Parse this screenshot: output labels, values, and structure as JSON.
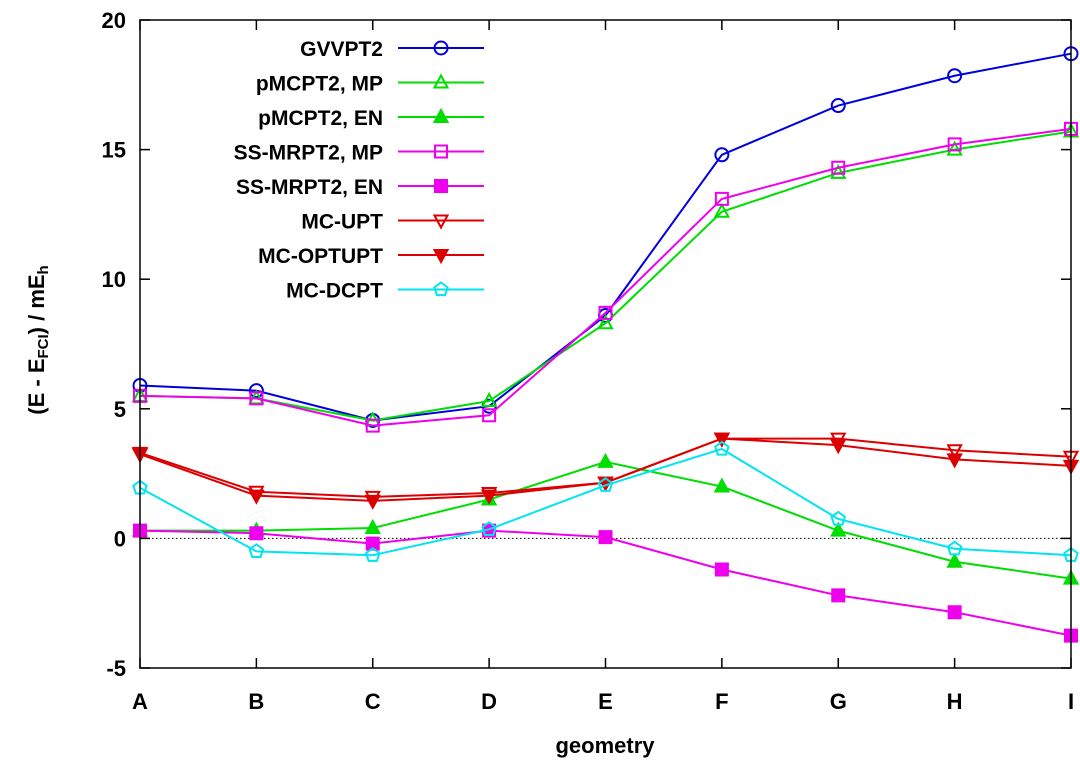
{
  "chart_data": {
    "type": "line",
    "xlabel": "geometry",
    "ylabel": {
      "main": "(E - E",
      "sub1": "FCI",
      "mid": ") / mE",
      "sub2": "h"
    },
    "categories": [
      "A",
      "B",
      "C",
      "D",
      "E",
      "F",
      "G",
      "H",
      "I"
    ],
    "ylim": [
      -5,
      20
    ],
    "yticks": [
      -5,
      0,
      5,
      10,
      15,
      20
    ],
    "ytick_labels": [
      "-5",
      "0",
      "5",
      "10",
      "15",
      "20"
    ],
    "zero_line": true,
    "grid": false,
    "legend_position": "top-left",
    "series": [
      {
        "name": "GVVPT2",
        "color": "#0000dd",
        "marker": "circle-open",
        "values": [
          5.9,
          5.7,
          4.55,
          5.1,
          8.6,
          14.8,
          16.7,
          17.85,
          18.7
        ]
      },
      {
        "name": "pMCPT2, MP",
        "color": "#00dd00",
        "marker": "triangle-up-open",
        "values": [
          5.5,
          5.4,
          4.55,
          5.3,
          8.3,
          12.6,
          14.1,
          15.0,
          15.7
        ]
      },
      {
        "name": "pMCPT2, EN",
        "color": "#00dd00",
        "marker": "triangle-up-filled",
        "values": [
          0.3,
          0.3,
          0.4,
          1.5,
          2.95,
          2.0,
          0.3,
          -0.9,
          -1.55
        ]
      },
      {
        "name": "SS-MRPT2, MP",
        "color": "#ee00ee",
        "marker": "square-open",
        "values": [
          5.5,
          5.4,
          4.35,
          4.75,
          8.7,
          13.1,
          14.3,
          15.2,
          15.8
        ]
      },
      {
        "name": "SS-MRPT2, EN",
        "color": "#ee00ee",
        "marker": "square-filled",
        "values": [
          0.3,
          0.2,
          -0.2,
          0.3,
          0.05,
          -1.2,
          -2.2,
          -2.85,
          -3.75
        ]
      },
      {
        "name": "MC-UPT",
        "color": "#dd0000",
        "marker": "triangle-down-open",
        "values": [
          3.3,
          1.8,
          1.6,
          1.75,
          2.15,
          3.85,
          3.85,
          3.4,
          3.15
        ]
      },
      {
        "name": "MC-OPTUPT",
        "color": "#dd0000",
        "marker": "triangle-down-filled",
        "values": [
          3.25,
          1.65,
          1.45,
          1.65,
          2.15,
          3.85,
          3.6,
          3.05,
          2.8
        ]
      },
      {
        "name": "MC-DCPT",
        "color": "#00e5ee",
        "marker": "pentagon-open",
        "values": [
          1.95,
          -0.5,
          -0.65,
          0.35,
          2.05,
          3.45,
          0.75,
          -0.4,
          -0.65
        ]
      }
    ]
  }
}
